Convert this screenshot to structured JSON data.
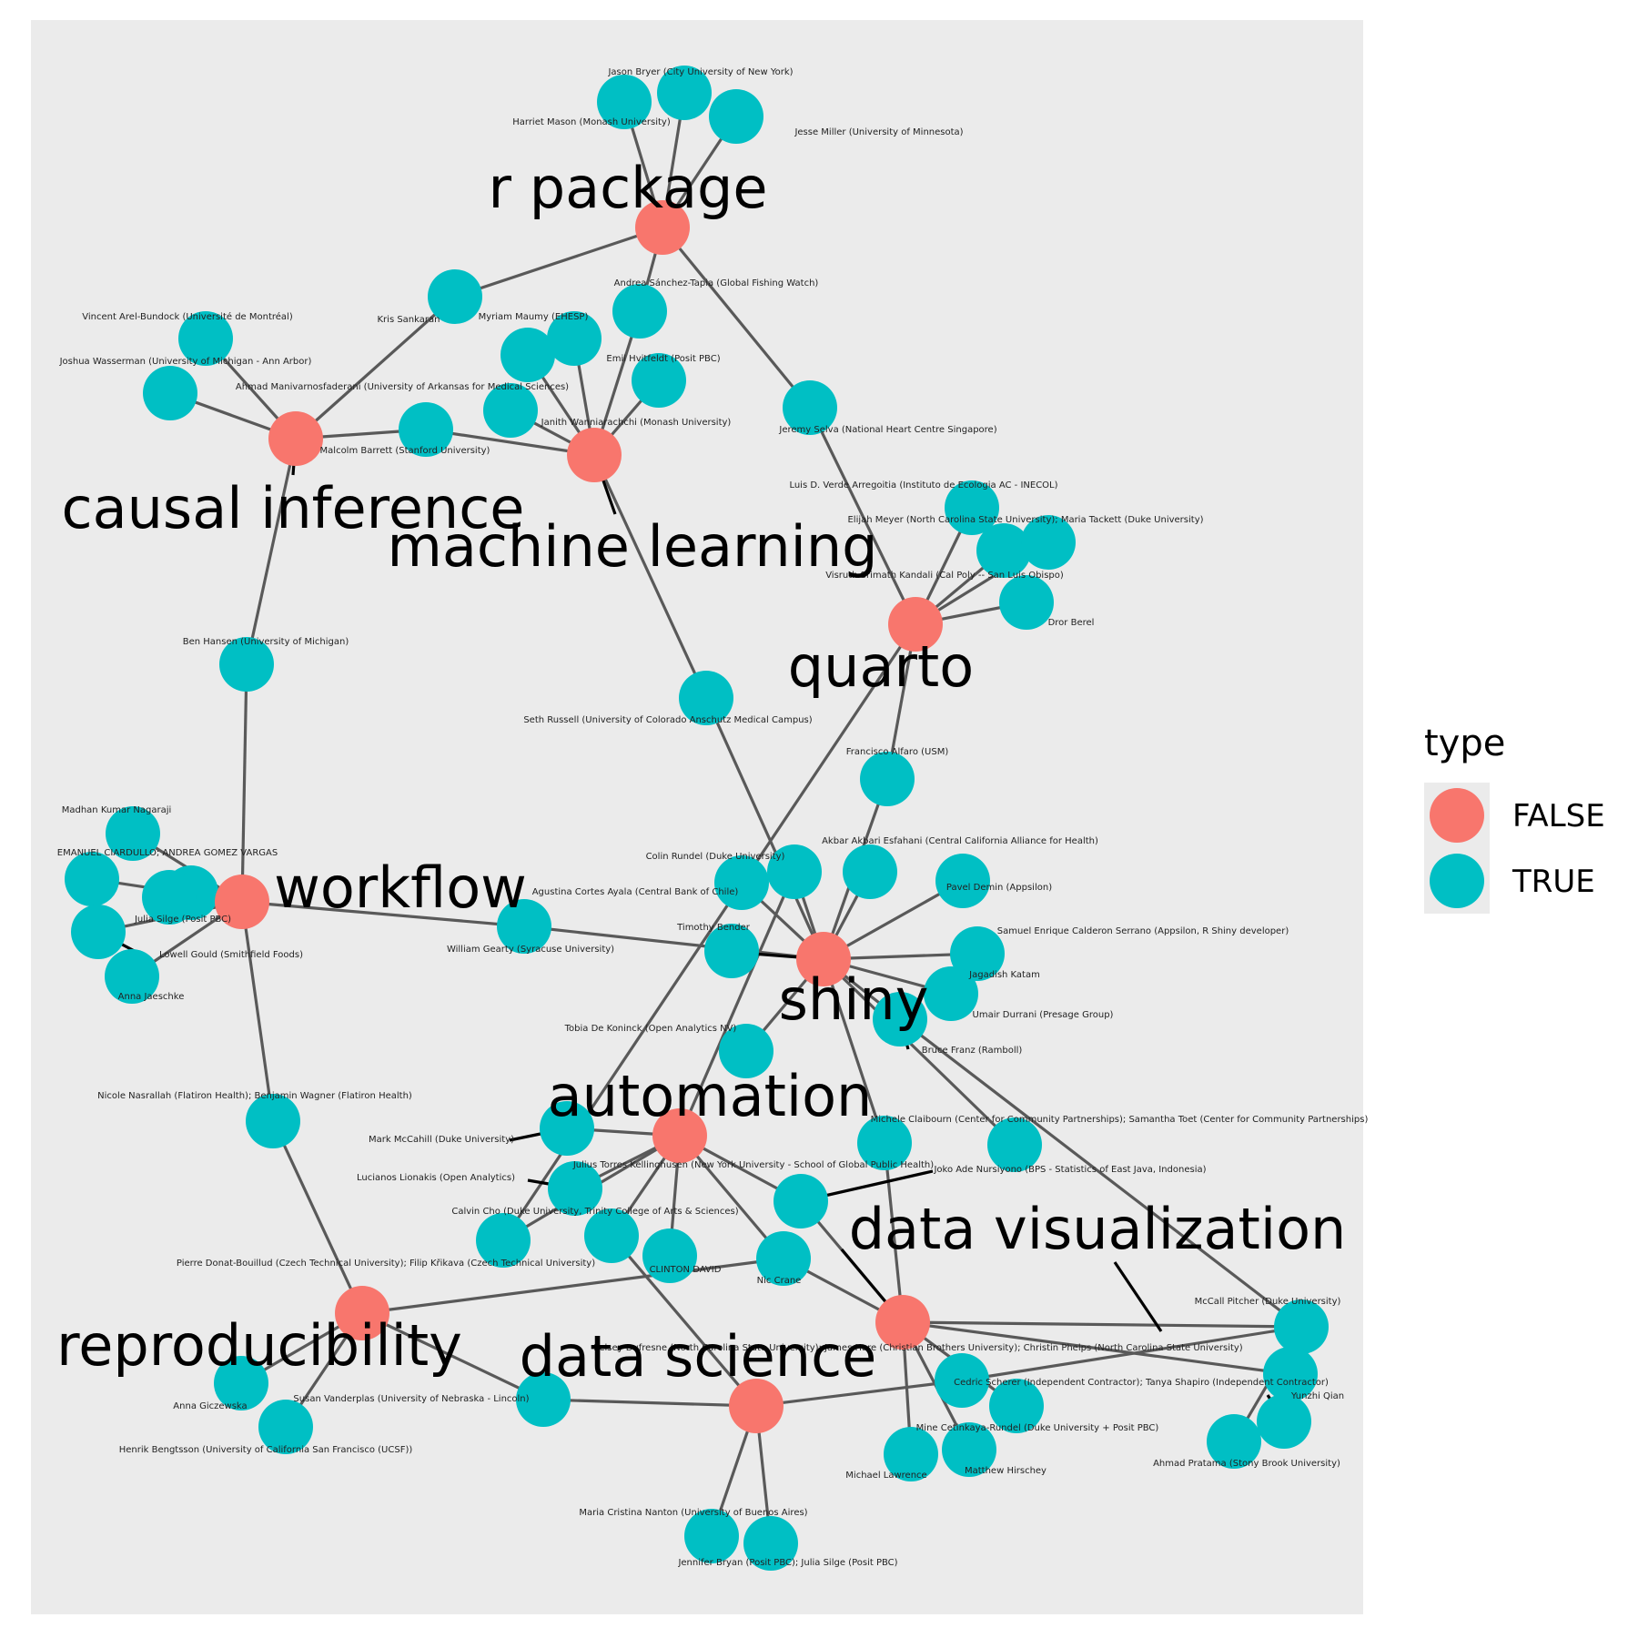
{
  "colors": {
    "panel": "#ebebeb",
    "edge": "#595959",
    "false_node": "#f8766d",
    "true_node": "#00bfc4",
    "legend_key_bg": "#ebebeb"
  },
  "legend": {
    "title": "type",
    "items": [
      {
        "label": "FALSE",
        "color": "#f8766d"
      },
      {
        "label": "TRUE",
        "color": "#00bfc4"
      }
    ]
  },
  "topics": [
    {
      "id": "r_package",
      "label": "r package"
    },
    {
      "id": "causal_inference",
      "label": "causal inference"
    },
    {
      "id": "machine_learning",
      "label": "machine learning"
    },
    {
      "id": "quarto",
      "label": "quarto"
    },
    {
      "id": "workflow",
      "label": "workflow"
    },
    {
      "id": "shiny",
      "label": "shiny"
    },
    {
      "id": "automation",
      "label": "automation"
    },
    {
      "id": "data_visualization",
      "label": "data visualization"
    },
    {
      "id": "reproducibility",
      "label": "reproducibility"
    },
    {
      "id": "data_science",
      "label": "data science"
    }
  ],
  "people": [
    {
      "id": "p1",
      "label": "Jason Bryer (City University of New York)"
    },
    {
      "id": "p2",
      "label": "Harriet Mason (Monash University)"
    },
    {
      "id": "p3",
      "label": "Jesse Miller (University of Minnesota)"
    },
    {
      "id": "p4",
      "label": "Kris Sankaran"
    },
    {
      "id": "p5",
      "label": "Andrea Sánchez-Tapia (Global Fishing Watch)"
    },
    {
      "id": "p6",
      "label": "Vincent Arel-Bundock (Université de Montréal)"
    },
    {
      "id": "p7",
      "label": "Myriam Maumy (EHESP)"
    },
    {
      "id": "p8",
      "label": "Joshua Wasserman (University of Michigan - Ann Arbor)"
    },
    {
      "id": "p9",
      "label": "Emil Hvitfeldt (Posit PBC)"
    },
    {
      "id": "p10",
      "label": "Ahmad Manivarnosfaderani (University of Arkansas for Medical Sciences)"
    },
    {
      "id": "p11",
      "label": "Janith Wanniarachchi (Monash University)"
    },
    {
      "id": "p12",
      "label": "Malcolm Barrett (Stanford University)"
    },
    {
      "id": "p13",
      "label": "Jeremy Selva (National Heart Centre Singapore)"
    },
    {
      "id": "p14",
      "label": "Luis D. Verde Arregoitia (Instituto de Ecologia AC - INECOL)"
    },
    {
      "id": "p15",
      "label": "Elijah Meyer (North Carolina State University); Maria Tackett (Duke University)"
    },
    {
      "id": "p16",
      "label": "Visruth Srimath Kandali (Cal Poly -- San Luis Obispo)"
    },
    {
      "id": "p17",
      "label": "Dror Berel"
    },
    {
      "id": "p18",
      "label": "Ben Hansen (University of Michigan)"
    },
    {
      "id": "p19",
      "label": "Seth Russell (University of Colorado Anschutz Medical Campus)"
    },
    {
      "id": "p20",
      "label": "Francisco Alfaro (USM)"
    },
    {
      "id": "p21",
      "label": "Madhan Kumar Nagaraji"
    },
    {
      "id": "p22",
      "label": "Akbar Akbari Esfahani (Central California Alliance for Health)"
    },
    {
      "id": "p23",
      "label": "EMANUEL CIARDULLO; ANDREA GOMEZ VARGAS"
    },
    {
      "id": "p24",
      "label": "Colin Rundel (Duke University)"
    },
    {
      "id": "p25",
      "label": "Pavel Demin (Appsilon)"
    },
    {
      "id": "p26",
      "label": "Agustina Cortes Ayala (Central Bank of Chile)"
    },
    {
      "id": "p27",
      "label": "Julia Silge (Posit PBC)"
    },
    {
      "id": "p28",
      "label": "Timothy Bender"
    },
    {
      "id": "p29",
      "label": "Samuel Enrique Calderon Serrano (Appsilon, R Shiny developer)"
    },
    {
      "id": "p30",
      "label": "Lowell Gould (Smithfield Foods)"
    },
    {
      "id": "p31",
      "label": "William Gearty (Syracuse University)"
    },
    {
      "id": "p32",
      "label": "Jagadish Katam"
    },
    {
      "id": "p33",
      "label": "Anna Jaeschke"
    },
    {
      "id": "p34",
      "label": "Umair Durrani (Presage Group)"
    },
    {
      "id": "p35",
      "label": "Tobia De Koninck (Open Analytics NV)"
    },
    {
      "id": "p36",
      "label": "Bruce Franz (Ramboll)"
    },
    {
      "id": "p37",
      "label": "Nicole Nasrallah (Flatiron Health); Benjamin Wagner (Flatiron Health)"
    },
    {
      "id": "p38",
      "label": "Michele Claibourn (Center for Community Partnerships); Samantha Toet (Center for Community Partnerships)"
    },
    {
      "id": "p39",
      "label": "Mark McCahill (Duke University)"
    },
    {
      "id": "p40",
      "label": "Julius Torres Kellinghusen (New York University - School of Global Public Health)"
    },
    {
      "id": "p41",
      "label": "Joko Ade Nursiyono (BPS - Statistics of East Java, Indonesia)"
    },
    {
      "id": "p42",
      "label": "Lucianos Lionakis (Open Analytics)"
    },
    {
      "id": "p43",
      "label": "Calvin Cho (Duke University, Trinity College of Arts & Sciences)"
    },
    {
      "id": "p44",
      "label": "CLINTON DAVID"
    },
    {
      "id": "p45",
      "label": "Nic Crane"
    },
    {
      "id": "p46",
      "label": "Pierre Donat-Bouillud (Czech Technical University); Filip Křikava (Czech Technical University)"
    },
    {
      "id": "p47",
      "label": "McCall Pitcher (Duke University)"
    },
    {
      "id": "p48",
      "label": "Kelsey Dufresne (North Carolina State University); James Hare (Christian Brothers University); Christin Phelps (North Carolina State University)"
    },
    {
      "id": "p49",
      "label": "Cedric Scherer (Independent Contractor); Tanya Shapiro (Independent Contractor)"
    },
    {
      "id": "p50",
      "label": "Yunzhi Qian"
    },
    {
      "id": "p51",
      "label": "Anna Giczewska"
    },
    {
      "id": "p52",
      "label": "Susan Vanderplas (University of Nebraska - Lincoln)"
    },
    {
      "id": "p53",
      "label": "Mine Cetinkaya-Rundel (Duke University + Posit PBC)"
    },
    {
      "id": "p54",
      "label": "Henrik Bengtsson (University of California San Francisco (UCSF))"
    },
    {
      "id": "p55",
      "label": "Ahmad Pratama (Stony Brook University)"
    },
    {
      "id": "p56",
      "label": "Michael Lawrence"
    },
    {
      "id": "p57",
      "label": "Matthew Hirschey"
    },
    {
      "id": "p58",
      "label": "Maria Cristina Nanton (University of Buenos Aires)"
    },
    {
      "id": "p59",
      "label": "Jennifer Bryan (Posit PBC); Julia Silge (Posit PBC)"
    }
  ]
}
